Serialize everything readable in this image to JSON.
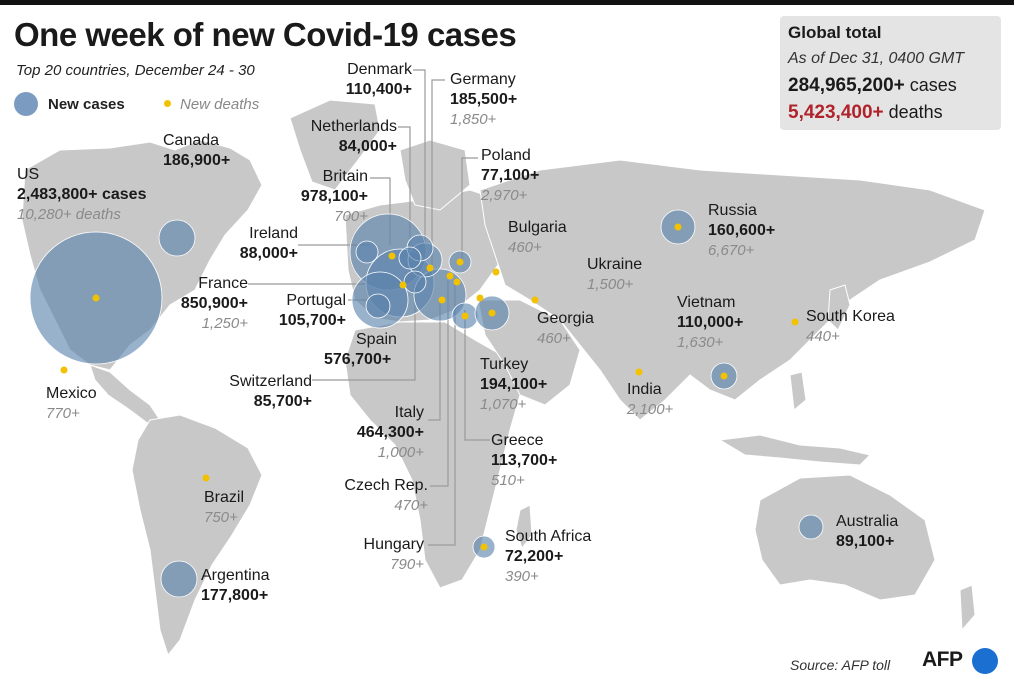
{
  "title": "One week of new Covid-19 cases",
  "subtitle": "Top 20 countries, December 24 - 30",
  "legend": {
    "cases": "New cases",
    "deaths": "New deaths"
  },
  "global": {
    "title": "Global total",
    "as_of": "As of Dec 31, 0400 GMT",
    "cases": "284,965,200+",
    "cases_unit": "cases",
    "deaths": "5,423,400+",
    "deaths_unit": "deaths"
  },
  "colors": {
    "bubble": "#7b9cc0",
    "death_dot": "#f2c200",
    "land": "#c8c8c8",
    "deaths_total": "#b0232a"
  },
  "countries": [
    {
      "name": "US",
      "cases": "2,483,800+ cases",
      "deaths": "10,280+ deaths"
    },
    {
      "name": "Canada",
      "cases": "186,900+"
    },
    {
      "name": "Mexico",
      "deaths": "770+"
    },
    {
      "name": "Brazil",
      "deaths": "750+"
    },
    {
      "name": "Argentina",
      "cases": "177,800+"
    },
    {
      "name": "Denmark",
      "cases": "110,400+"
    },
    {
      "name": "Netherlands",
      "cases": "84,000+"
    },
    {
      "name": "Britain",
      "cases": "978,100+",
      "deaths": "700+"
    },
    {
      "name": "Ireland",
      "cases": "88,000+"
    },
    {
      "name": "France",
      "cases": "850,900+",
      "deaths": "1,250+"
    },
    {
      "name": "Portugal",
      "cases": "105,700+"
    },
    {
      "name": "Spain",
      "cases": "576,700+"
    },
    {
      "name": "Switzerland",
      "cases": "85,700+"
    },
    {
      "name": "Italy",
      "cases": "464,300+",
      "deaths": "1,000+"
    },
    {
      "name": "Czech Rep.",
      "deaths": "470+"
    },
    {
      "name": "Hungary",
      "deaths": "790+"
    },
    {
      "name": "Germany",
      "cases": "185,500+",
      "deaths": "1,850+"
    },
    {
      "name": "Poland",
      "cases": "77,100+",
      "deaths": "2,970+"
    },
    {
      "name": "Bulgaria",
      "deaths": "460+"
    },
    {
      "name": "Ukraine",
      "deaths": "1,500+"
    },
    {
      "name": "Georgia",
      "deaths": "460+"
    },
    {
      "name": "Turkey",
      "cases": "194,100+",
      "deaths": "1,070+"
    },
    {
      "name": "Greece",
      "cases": "113,700+",
      "deaths": "510+"
    },
    {
      "name": "South Africa",
      "cases": "72,200+",
      "deaths": "390+"
    },
    {
      "name": "Russia",
      "cases": "160,600+",
      "deaths": "6,670+"
    },
    {
      "name": "Vietnam",
      "cases": "110,000+",
      "deaths": "1,630+"
    },
    {
      "name": "South Korea",
      "deaths": "440+"
    },
    {
      "name": "India",
      "deaths": "2,100+"
    },
    {
      "name": "Australia",
      "cases": "89,100+"
    }
  ],
  "source": "Source: AFP toll",
  "logo": "AFP"
}
